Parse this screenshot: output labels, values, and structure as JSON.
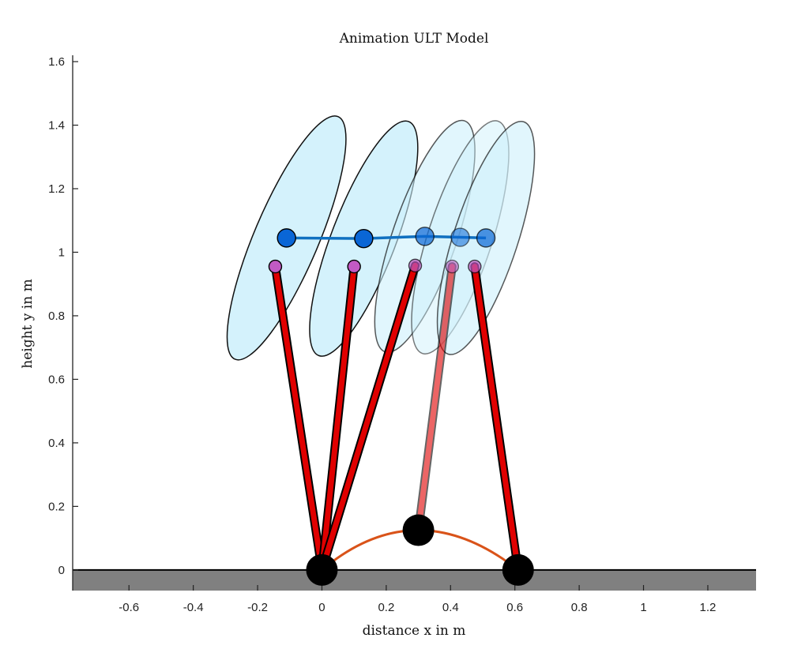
{
  "chart_data": {
    "type": "animation-frames",
    "title": "Animation ULT Model",
    "xlabel": "distance x in m",
    "ylabel": "height y in m",
    "xlim": [
      -0.775,
      1.35
    ],
    "ylim": [
      -0.065,
      1.62
    ],
    "xticks": [
      -0.6,
      -0.4,
      -0.2,
      0,
      0.2,
      0.4,
      0.6,
      0.8,
      1,
      1.2
    ],
    "xtick_labels": [
      "-0.6",
      "-0.4",
      "-0.2",
      "0",
      "0.2",
      "0.4",
      "0.6",
      "0.8",
      "1",
      "1.2"
    ],
    "yticks": [
      0,
      0.2,
      0.4,
      0.6,
      0.8,
      1,
      1.2,
      1.4,
      1.6
    ],
    "ytick_labels": [
      "0",
      "0.2",
      "0.4",
      "0.6",
      "0.8",
      "1",
      "1.2",
      "1.4",
      "1.6"
    ],
    "ground_level": 0,
    "colors": {
      "ground": "#808080",
      "body_fill": "#ccf0fb",
      "body_edge": "#111111",
      "com": "#0a66d6",
      "com_path": "#1070c0",
      "hip": "#c25ac4",
      "leg": "#e00000",
      "foot": "#000000",
      "foot_path": "#d95319"
    },
    "com_path": [
      [
        -0.11,
        1.045
      ],
      [
        0.13,
        1.043
      ],
      [
        0.32,
        1.05
      ],
      [
        0.43,
        1.047
      ],
      [
        0.51,
        1.045
      ]
    ],
    "foot_path": {
      "start": [
        0.0,
        0.0
      ],
      "apex": [
        0.3,
        0.125
      ],
      "end": [
        0.61,
        0.0
      ]
    },
    "frames": [
      {
        "com": [
          -0.11,
          1.045
        ],
        "hip": [
          -0.145,
          0.955
        ],
        "foot": [
          0.0,
          0.0
        ],
        "body_center": [
          -0.11,
          1.045
        ],
        "body_axes": [
          0.41,
          0.1
        ],
        "body_tilt_deg": 67,
        "opacity": 1.0
      },
      {
        "com": [
          0.13,
          1.043
        ],
        "hip": [
          0.1,
          0.955
        ],
        "foot": [
          0.0,
          0.0
        ],
        "body_center": [
          0.13,
          1.043
        ],
        "body_axes": [
          0.39,
          0.1
        ],
        "body_tilt_deg": 69,
        "opacity": 1.0
      },
      {
        "com": [
          0.32,
          1.05
        ],
        "hip": [
          0.29,
          0.958
        ],
        "foot": [
          0.0,
          0.0
        ],
        "body_center": [
          0.32,
          1.05
        ],
        "body_axes": [
          0.38,
          0.1
        ],
        "body_tilt_deg": 71,
        "opacity": 0.7
      },
      {
        "com": [
          0.43,
          1.047
        ],
        "hip": [
          0.405,
          0.955
        ],
        "foot": [
          0.3,
          0.125
        ],
        "body_center": [
          0.43,
          1.047
        ],
        "body_axes": [
          0.38,
          0.1
        ],
        "body_tilt_deg": 72,
        "opacity": 0.55
      },
      {
        "com": [
          0.51,
          1.045
        ],
        "hip": [
          0.475,
          0.955
        ],
        "foot": [
          0.61,
          0.0
        ],
        "body_center": [
          0.51,
          1.045
        ],
        "body_axes": [
          0.38,
          0.1
        ],
        "body_tilt_deg": 72,
        "opacity": 0.7
      }
    ]
  }
}
